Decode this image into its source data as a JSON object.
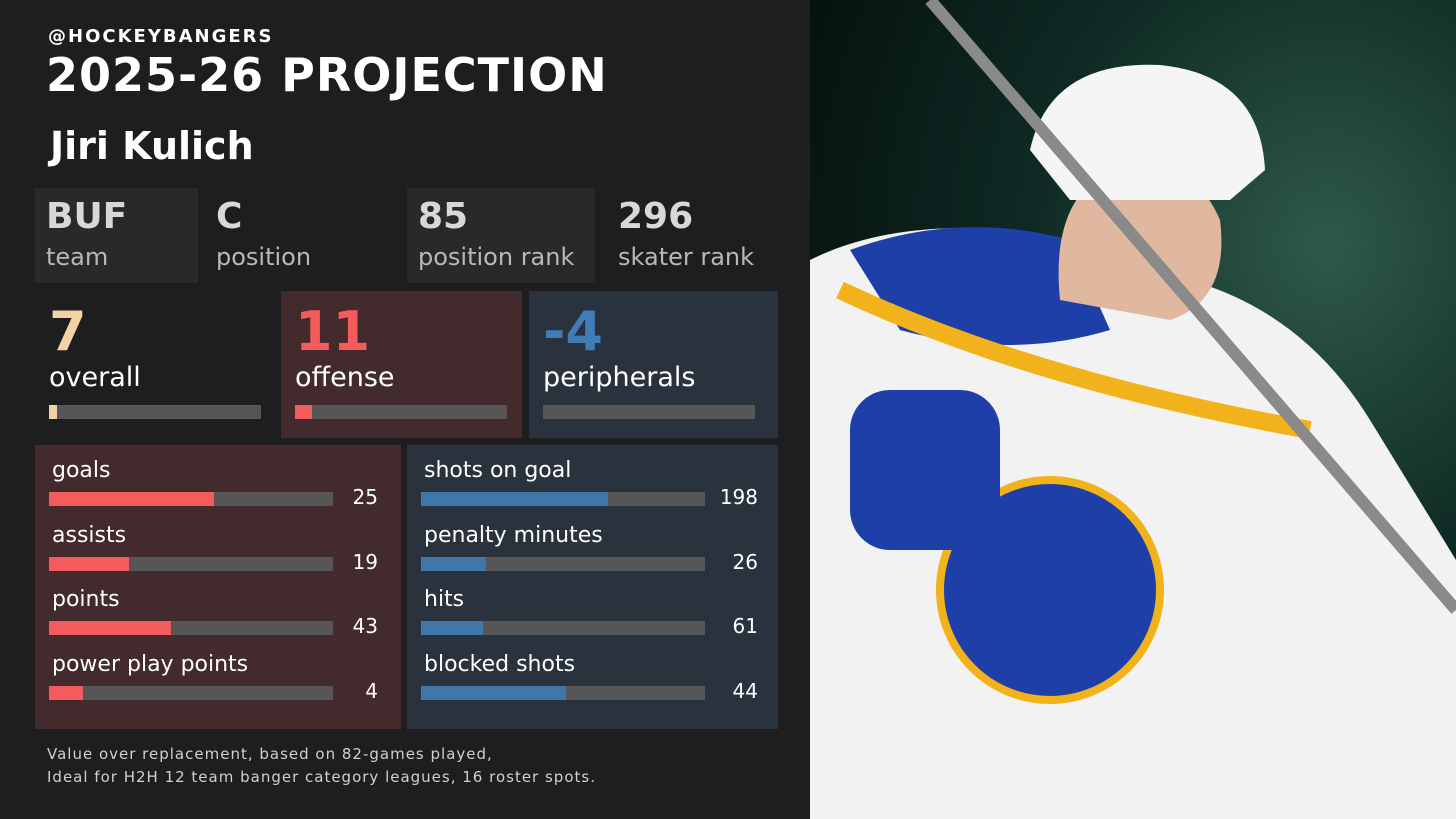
{
  "header": {
    "handle": "@HOCKEYBANGERS",
    "title": "2025-26 PROJECTION",
    "player": "Jiri Kulich"
  },
  "info": [
    {
      "value": "BUF",
      "label": "team"
    },
    {
      "value": "C",
      "label": "position"
    },
    {
      "value": 85,
      "label": "position rank"
    },
    {
      "value": 296,
      "label": "skater rank"
    }
  ],
  "bar_range": [
    0,
    100
  ],
  "scores": [
    {
      "value": 7,
      "label": "overall",
      "bar": 4
    },
    {
      "value": 11,
      "label": "offense",
      "bar": 8
    },
    {
      "value": -4,
      "label": "peripherals",
      "bar": 0
    }
  ],
  "offense_stats": [
    {
      "label": "goals",
      "value": 25,
      "bar": 58
    },
    {
      "label": "assists",
      "value": 19,
      "bar": 28
    },
    {
      "label": "points",
      "value": 43,
      "bar": 43
    },
    {
      "label": "power play points",
      "value": 4,
      "bar": 12
    }
  ],
  "peripheral_stats": [
    {
      "label": "shots on goal",
      "value": 198,
      "bar": 66
    },
    {
      "label": "penalty minutes",
      "value": 26,
      "bar": 23
    },
    {
      "label": "hits",
      "value": 61,
      "bar": 22
    },
    {
      "label": "blocked shots",
      "value": 44,
      "bar": 51
    }
  ],
  "footer": [
    "Value over replacement, based on 82-games played,",
    "Ideal for H2H 12 team banger category leagues, 16 roster spots."
  ]
}
